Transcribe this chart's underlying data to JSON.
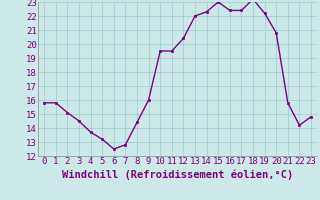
{
  "x": [
    0,
    1,
    2,
    3,
    4,
    5,
    6,
    7,
    8,
    9,
    10,
    11,
    12,
    13,
    14,
    15,
    16,
    17,
    18,
    19,
    20,
    21,
    22,
    23
  ],
  "y": [
    15.8,
    15.8,
    15.1,
    14.5,
    13.7,
    13.2,
    12.5,
    12.8,
    14.4,
    16.0,
    19.5,
    19.5,
    20.4,
    22.0,
    22.3,
    23.0,
    22.4,
    22.4,
    23.2,
    22.2,
    20.8,
    15.8,
    14.2,
    14.8
  ],
  "line_color": "#800080",
  "marker": "s",
  "marker_size": 2,
  "bg_color": "#cce8e8",
  "grid_color": "#99cccc",
  "xlabel": "Windchill (Refroidissement éolien,°C)",
  "xlabel_color": "#800080",
  "tick_color": "#800080",
  "ylim": [
    12,
    23
  ],
  "xlim": [
    0,
    23
  ],
  "yticks": [
    12,
    13,
    14,
    15,
    16,
    17,
    18,
    19,
    20,
    21,
    22,
    23
  ],
  "xticks": [
    0,
    1,
    2,
    3,
    4,
    5,
    6,
    7,
    8,
    9,
    10,
    11,
    12,
    13,
    14,
    15,
    16,
    17,
    18,
    19,
    20,
    21,
    22,
    23
  ],
  "line_width": 1.0,
  "tick_fontsize": 6.5,
  "xlabel_fontsize": 7.5
}
